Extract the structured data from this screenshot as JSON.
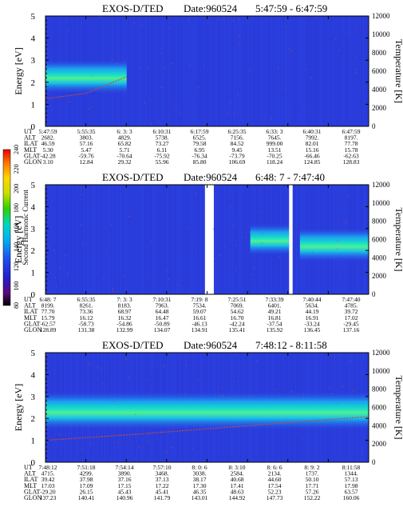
{
  "colorbar": {
    "label": "Second Harmonic Current",
    "ticks": [
      "80",
      "100",
      "120",
      "140",
      "160",
      "180",
      "200",
      "220",
      "240"
    ],
    "colors": [
      "#000000",
      "#5a0a7a",
      "#2020c8",
      "#2050f0",
      "#00b0f0",
      "#00d8c0",
      "#30d000",
      "#c8e000",
      "#ffd400",
      "#ff7a00",
      "#e80000"
    ]
  },
  "panels": [
    {
      "title": "EXOS-D/TED",
      "date": "Date:960524",
      "time_range": "5:47:59 - 6:47:59",
      "ylabel": "Energy [eV]",
      "y2label": "Temperature [K]",
      "yticks": [
        "0",
        "1",
        "2",
        "3",
        "4",
        "5"
      ],
      "y2ticks": [
        "0",
        "2000",
        "4000",
        "6000",
        "8000",
        "10000",
        "12000"
      ],
      "row_labels": [
        "UT",
        "ALT",
        "ILAT",
        "MLT",
        "GLAT",
        "GLON"
      ],
      "columns": [
        [
          "5:47:59",
          "2682.",
          "46.59",
          "5.30",
          "-42.28",
          "3.10"
        ],
        [
          "5:55:35",
          "3803.",
          "57.16",
          "5.47",
          "-59.76",
          "12.84"
        ],
        [
          "6: 3: 3",
          "4829.",
          "65.82",
          "5.71",
          "-70.64",
          "29.32"
        ],
        [
          "6:10:31",
          "5738.",
          "73.27",
          "6.11",
          "-75.92",
          "55.96"
        ],
        [
          "6:17:59",
          "6525.",
          "79.58",
          "6.95",
          "-76.34",
          "85.80"
        ],
        [
          "6:25:35",
          "7156.",
          "84.52",
          "9.45",
          "-73.79",
          "106.69"
        ],
        [
          "6:33: 3",
          "7645.",
          "999.00",
          "13.51",
          "-70.25",
          "118.24"
        ],
        [
          "6:40:31",
          "7992.",
          "82.01",
          "15.16",
          "-66.46",
          "124.85"
        ],
        [
          "6:47:59",
          "8197.",
          "77.78",
          "15.78",
          "-62.63",
          "128.83"
        ]
      ]
    },
    {
      "title": "EXOS-D/TED",
      "date": "Date:960524",
      "time_range": "6:48: 7 - 7:47:40",
      "ylabel": "Energy [eV]",
      "y2label": "Temperature [K]",
      "yticks": [
        "0",
        "1",
        "2",
        "3",
        "4",
        "5"
      ],
      "y2ticks": [
        "0",
        "2000",
        "4000",
        "6000",
        "8000",
        "10000",
        "12000"
      ],
      "row_labels": [
        "UT",
        "ALT",
        "ILAT",
        "MLT",
        "GLAT",
        "GLON"
      ],
      "columns": [
        [
          "6:48: 7",
          "8199.",
          "77.70",
          "15.79",
          "-62.57",
          "128.89"
        ],
        [
          "6:55:35",
          "8261.",
          "73.36",
          "16.12",
          "-58.73",
          "131.38"
        ],
        [
          "7: 3: 3",
          "8183.",
          "68.97",
          "16.32",
          "-54.86",
          "132.99"
        ],
        [
          "7:10:31",
          "7963.",
          "64.48",
          "16.47",
          "-50.89",
          "134.07"
        ],
        [
          "7:19: 8",
          "7534.",
          "59.07",
          "16.61",
          "-46.13",
          "134.91"
        ],
        [
          "7:25:51",
          "7069.",
          "54.62",
          "16.70",
          "-42.24",
          "135.41"
        ],
        [
          "7:33:39",
          "6401.",
          "49.21",
          "16.81",
          "-37.54",
          "135.92"
        ],
        [
          "7:40:44",
          "5634.",
          "44.19",
          "16.91",
          "-33.24",
          "136.45"
        ],
        [
          "7:47:40",
          "4785.",
          "39.72",
          "17.02",
          "-29.45",
          "137.16"
        ]
      ]
    },
    {
      "title": "EXOS-D/TED",
      "date": "Date:960524",
      "time_range": "7:48:12 - 8:11:58",
      "ylabel": "Energy [eV]",
      "y2label": "Temperature [K]",
      "yticks": [
        "0",
        "1",
        "2",
        "3",
        "4",
        "5"
      ],
      "y2ticks": [
        "0",
        "2000",
        "4000",
        "6000",
        "8000",
        "10000",
        "12000"
      ],
      "row_labels": [
        "UT",
        "ALT",
        "ILAT",
        "MLT",
        "GLAT",
        "GLON"
      ],
      "columns": [
        [
          "7:48:12",
          "4715.",
          "39.42",
          "17.03",
          "-29.20",
          "137.23"
        ],
        [
          "7:51:18",
          "4299.",
          "37.98",
          "17.09",
          "26.15",
          "140.41"
        ],
        [
          "7:54:14",
          "3890.",
          "37.16",
          "17.15",
          "45.43",
          "140.96"
        ],
        [
          "7:57:10",
          "3468.",
          "37.13",
          "17.22",
          "45.41",
          "141.79"
        ],
        [
          "8: 0: 6",
          "3038.",
          "38.17",
          "17.30",
          "46.35",
          "143.01"
        ],
        [
          "8: 3:10",
          "2584.",
          "40.68",
          "17.41",
          "48.63",
          "144.92"
        ],
        [
          "8: 6: 6",
          "2134.",
          "44.60",
          "17.54",
          "52.23",
          "147.73"
        ],
        [
          "8: 9: 2",
          "1737.",
          "50.10",
          "17.71",
          "57.26",
          "152.22"
        ],
        [
          "8:11:58",
          "1344.",
          "57.13",
          "17.98",
          "63.57",
          "160.06"
        ]
      ]
    }
  ],
  "chart_data": [
    {
      "type": "heatmap",
      "title": "EXOS-D/TED  Date:960524  5:47:59 - 6:47:59",
      "xlabel": "UT",
      "ylabel": "Energy [eV]",
      "y2label": "Temperature [K]",
      "ylim": [
        0,
        5
      ],
      "y2lim": [
        0,
        12000
      ],
      "colorbar": {
        "label": "Second Harmonic Current",
        "range": [
          80,
          240
        ]
      },
      "features": [
        {
          "ut_start": "5:47:59",
          "ut_end": "6: 3: 3",
          "energy_center": 2.2,
          "energy_range": [
            1.5,
            3.0
          ],
          "level": "green-cyan band, fading with time"
        }
      ],
      "temperature_trace": [
        {
          "ut": "5:47:59",
          "temperature": 3000
        },
        {
          "ut": "5:55:35",
          "temperature": 3600
        },
        {
          "ut": "6: 3: 3",
          "temperature": 5400
        }
      ]
    },
    {
      "type": "heatmap",
      "title": "EXOS-D/TED  Date:960524  6:48: 7 - 7:47:40",
      "xlabel": "UT",
      "ylabel": "Energy [eV]",
      "y2label": "Temperature [K]",
      "ylim": [
        0,
        5
      ],
      "y2lim": [
        0,
        12000
      ],
      "colorbar": {
        "label": "Second Harmonic Current",
        "range": [
          80,
          240
        ]
      },
      "data_gaps": [
        [
          "7:17:30",
          "7:19: 8"
        ],
        [
          "7:33:00",
          "7:33:39"
        ]
      ],
      "features": [
        {
          "ut_start": "7:25:51",
          "ut_end": "7:33: 0",
          "energy_center": 2.5,
          "energy_range": [
            1.8,
            3.2
          ],
          "level": "cyan"
        },
        {
          "ut_start": "7:35:00",
          "ut_end": "7:47:40",
          "energy_center": 2.2,
          "energy_range": [
            1.5,
            3.0
          ],
          "level": "cyan-green"
        }
      ]
    },
    {
      "type": "heatmap",
      "title": "EXOS-D/TED  Date:960524  7:48:12 - 8:11:58",
      "xlabel": "UT",
      "ylabel": "Energy [eV]",
      "y2label": "Temperature [K]",
      "ylim": [
        0,
        5
      ],
      "y2lim": [
        0,
        12000
      ],
      "colorbar": {
        "label": "Second Harmonic Current",
        "range": [
          80,
          240
        ]
      },
      "features": [
        {
          "ut_start": "7:48:12",
          "ut_end": "8:11:58",
          "energy_center": 2.3,
          "energy_range": [
            1.5,
            3.2
          ],
          "level": "green-cyan band across full interval, strongest near 7:57-8:06"
        }
      ],
      "temperature_trace": [
        {
          "ut": "7:48:12",
          "temperature": 2400
        },
        {
          "ut": "7:54:14",
          "temperature": 3000
        },
        {
          "ut": "8: 3:10",
          "temperature": 4000
        },
        {
          "ut": "8:11:58",
          "temperature": 5000
        }
      ]
    }
  ]
}
